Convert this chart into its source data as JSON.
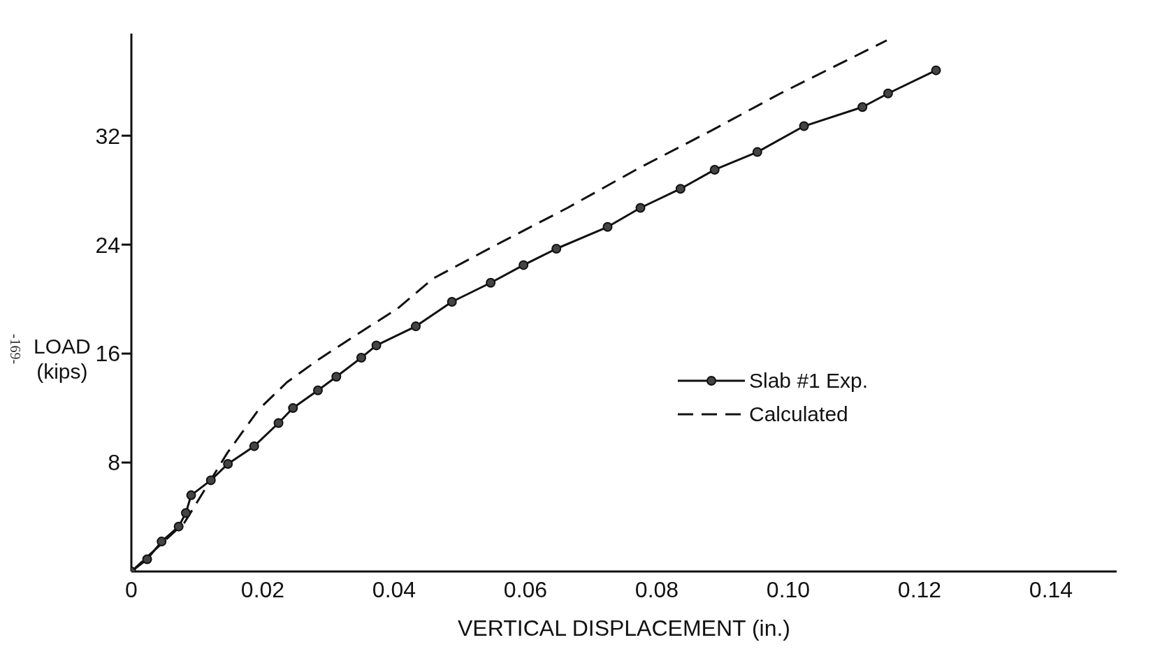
{
  "chart_data": {
    "type": "line",
    "xlabel": "VERTICAL  DISPLACEMENT (in.)",
    "ylabel": "LOAD\n(kips)",
    "annotations": [
      "-169-"
    ],
    "xlim": [
      0,
      0.15
    ],
    "xticks": [
      0,
      0.02,
      0.04,
      0.06,
      0.08,
      {
        "value": 0.1,
        "label": "0.10"
      },
      0.12,
      0.14
    ],
    "ylim": [
      0,
      39.5
    ],
    "yticks": [
      8,
      16,
      24,
      32
    ],
    "grid": false,
    "legend": "right",
    "series": [
      {
        "name": "Slab #1  Exp.",
        "color": "#111111",
        "marker": "circle",
        "line_style": "solid",
        "x": [
          0,
          0.0024,
          0.0046,
          0.0072,
          0.0083,
          0.0091,
          0.0121,
          0.0147,
          0.0187,
          0.0224,
          0.0246,
          0.0284,
          0.0312,
          0.035,
          0.0373,
          0.0433,
          0.0488,
          0.0547,
          0.0597,
          0.0647,
          0.0725,
          0.0775,
          0.0836,
          0.0888,
          0.0953,
          0.1024,
          0.1113,
          0.1152,
          0.1225
        ],
        "values": [
          0,
          0.9,
          2.2,
          3.3,
          4.3,
          5.6,
          6.7,
          7.9,
          9.2,
          10.9,
          12.0,
          13.3,
          14.3,
          15.7,
          16.6,
          18.0,
          19.8,
          21.2,
          22.5,
          23.7,
          25.3,
          26.7,
          28.1,
          29.5,
          30.8,
          32.7,
          34.1,
          35.1,
          36.8
        ]
      },
      {
        "name": "Calculated",
        "color": "#111111",
        "marker": "none",
        "line_style": "dashed",
        "x": [
          0,
          0.0081,
          0.0146,
          0.0194,
          0.0237,
          0.0286,
          0.034,
          0.0405,
          0.0459,
          0.0556,
          0.0664,
          0.0772,
          0.088,
          0.0988,
          0.115
        ],
        "values": [
          0,
          3.6,
          8.7,
          11.9,
          13.9,
          15.6,
          17.3,
          19.3,
          21.5,
          24.0,
          26.7,
          29.6,
          32.3,
          35.1,
          39.0
        ]
      }
    ]
  }
}
